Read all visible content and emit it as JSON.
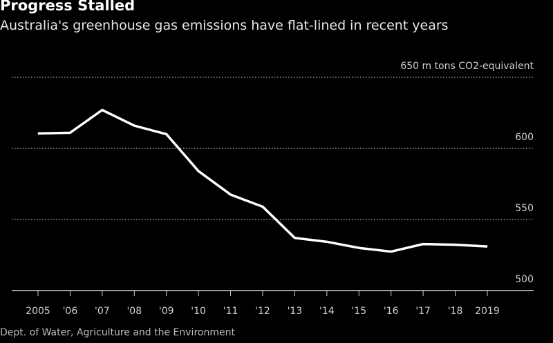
{
  "header": {
    "title": "Progress Stalled",
    "subtitle": "Australia's greenhouse gas emissions have flat-lined in recent years"
  },
  "footer": {
    "source": "Dept. of Water, Agriculture and the Environment"
  },
  "chart_data": {
    "type": "line",
    "title": "Progress Stalled",
    "subtitle": "Australia's greenhouse gas emissions have flat-lined in recent years",
    "ylabel_unit": "m tons CO2-equivalent",
    "categories": [
      "2005",
      "'06",
      "'07",
      "'08",
      "'09",
      "'10",
      "'11",
      "'12",
      "'13",
      "'14",
      "'15",
      "'16",
      "'17",
      "'18",
      "2019"
    ],
    "values": [
      610.5,
      611,
      627,
      616,
      610,
      584,
      567.5,
      559,
      537,
      534.3,
      530,
      527.4,
      532.7,
      532.2,
      531
    ],
    "ylim": [
      500,
      650
    ],
    "yticks": [
      500,
      550,
      600,
      650
    ],
    "ytick_labels": [
      "500",
      "550",
      "600",
      "650 m tons CO2-equivalent"
    ],
    "grid": true,
    "colors": {
      "background": "#000000",
      "line": "#ffffff",
      "grid": "#9a9a9a"
    }
  }
}
